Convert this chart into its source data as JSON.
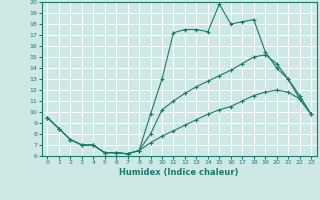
{
  "xlabel": "Humidex (Indice chaleur)",
  "xlim": [
    -0.5,
    23.5
  ],
  "ylim": [
    6,
    20
  ],
  "yticks": [
    6,
    7,
    8,
    9,
    10,
    11,
    12,
    13,
    14,
    15,
    16,
    17,
    18,
    19,
    20
  ],
  "xticks": [
    0,
    1,
    2,
    3,
    4,
    5,
    6,
    7,
    8,
    9,
    10,
    11,
    12,
    13,
    14,
    15,
    16,
    17,
    18,
    19,
    20,
    21,
    22,
    23
  ],
  "background_color": "#cde8e5",
  "grid_color": "#ffffff",
  "line_color": "#1a7a6e",
  "line1_x": [
    0,
    1,
    2,
    3,
    4,
    5,
    6,
    7,
    8,
    9,
    10,
    11,
    12,
    13,
    14,
    15,
    16,
    17,
    18,
    19,
    20,
    21,
    22,
    23
  ],
  "line1_y": [
    9.5,
    8.5,
    7.5,
    7.0,
    7.0,
    6.3,
    6.3,
    6.2,
    6.5,
    9.8,
    13.0,
    17.2,
    17.5,
    17.5,
    17.3,
    19.8,
    18.0,
    18.2,
    18.4,
    15.5,
    14.0,
    13.0,
    11.5,
    9.8
  ],
  "line2_x": [
    0,
    1,
    2,
    3,
    4,
    5,
    6,
    7,
    8,
    9,
    10,
    11,
    12,
    13,
    14,
    15,
    16,
    17,
    18,
    19,
    20,
    21,
    22,
    23
  ],
  "line2_y": [
    9.5,
    8.5,
    7.5,
    7.0,
    7.0,
    6.3,
    6.3,
    6.2,
    6.5,
    8.0,
    10.2,
    11.0,
    11.7,
    12.3,
    12.8,
    13.3,
    13.8,
    14.4,
    15.0,
    15.2,
    14.4,
    13.0,
    11.2,
    9.8
  ],
  "line3_x": [
    0,
    1,
    2,
    3,
    4,
    5,
    6,
    7,
    8,
    9,
    10,
    11,
    12,
    13,
    14,
    15,
    16,
    17,
    18,
    19,
    20,
    21,
    22,
    23
  ],
  "line3_y": [
    9.5,
    8.5,
    7.5,
    7.0,
    7.0,
    6.3,
    6.3,
    6.2,
    6.5,
    7.2,
    7.8,
    8.3,
    8.8,
    9.3,
    9.8,
    10.2,
    10.5,
    11.0,
    11.5,
    11.8,
    12.0,
    11.8,
    11.2,
    9.8
  ]
}
